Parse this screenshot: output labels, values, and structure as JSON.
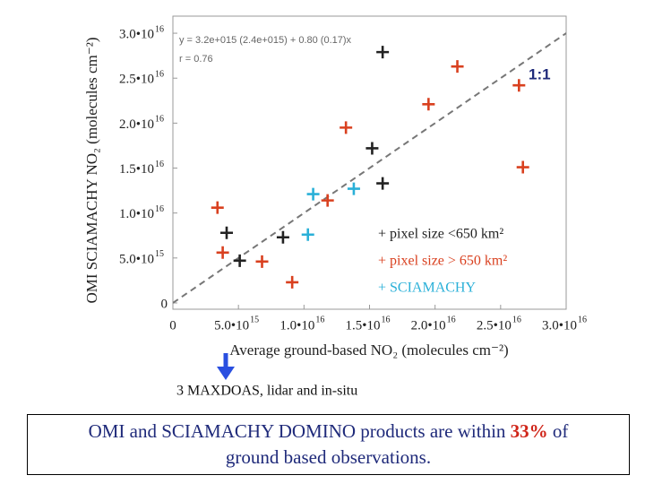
{
  "chart_data": {
    "type": "scatter",
    "xlabel": "Average ground-based NO₂ (molecules cm⁻²)",
    "ylabel": "OMI SCIAMACHY NO₂ (molecules cm⁻²)",
    "fit_text": "y = 3.2e+015 (2.4e+015) + 0.80 (0.17)x",
    "r_text": "r = 0.76",
    "diagonal_label": "1:1",
    "annotation": "3 MAXDOAS, lidar and in-situ",
    "xlim": [
      0,
      3e+16
    ],
    "ylim": [
      -700000000000000.0,
      3.19e+16
    ],
    "xticks": [
      0,
      {
        "value": 5000000000000000.0,
        "label": "5.0•10",
        "exponent": "15"
      },
      {
        "value": 1e+16,
        "label": "1.0•10",
        "exponent": "16"
      },
      {
        "value": 1.5e+16,
        "label": "1.5•10",
        "exponent": "16"
      },
      {
        "value": 2e+16,
        "label": "2.0•10",
        "exponent": "16"
      },
      {
        "value": 2.5e+16,
        "label": "2.5•10",
        "exponent": "16"
      },
      {
        "value": 3e+16,
        "label": "3.0•10",
        "exponent": "16"
      }
    ],
    "yticks": [
      0,
      {
        "value": 5000000000000000.0,
        "label": "5.0•10",
        "exponent": "15"
      },
      {
        "value": 1e+16,
        "label": "1.0•10",
        "exponent": "16"
      },
      {
        "value": 1.5e+16,
        "label": "1.5•10",
        "exponent": "16"
      },
      {
        "value": 2e+16,
        "label": "2.0•10",
        "exponent": "16"
      },
      {
        "value": 2.5e+16,
        "label": "2.5•10",
        "exponent": "16"
      },
      {
        "value": 3e+16,
        "label": "3.0•10",
        "exponent": "16"
      }
    ],
    "series": [
      {
        "name": "+ pixel size <650 km²",
        "color": "#222222",
        "x": [
          1.6e+16,
          1.52e+16,
          1.6e+16,
          4100000000000000.0,
          8400000000000000.0,
          5100000000000000.0
        ],
        "values": [
          2.79e+16,
          1.72e+16,
          1.33e+16,
          7800000000000000.0,
          7300000000000000.0,
          4700000000000000.0
        ]
      },
      {
        "name": "+ pixel size > 650 km²",
        "color": "#d9401f",
        "x": [
          2.17e+16,
          2.64e+16,
          1.95e+16,
          1.32e+16,
          2.67e+16,
          1.18e+16,
          3400000000000000.0,
          3800000000000000.0,
          6800000000000000.0,
          9100000000000000.0
        ],
        "values": [
          2.63e+16,
          2.42e+16,
          2.21e+16,
          1.95e+16,
          1.51e+16,
          1.14e+16,
          1.06e+16,
          5600000000000000.0,
          4600000000000000.0,
          2300000000000000.0
        ]
      },
      {
        "name": "+ SCIAMACHY",
        "color": "#2ab0d8",
        "x": [
          1.07e+16,
          1.38e+16,
          1.03e+16
        ],
        "values": [
          1.21e+16,
          1.27e+16,
          7600000000000000.0
        ]
      }
    ]
  },
  "caption": {
    "line1": [
      "OMI and SCIAMACHY DOMINO products are within ",
      "33%",
      " of"
    ],
    "line2": "ground based observations."
  }
}
